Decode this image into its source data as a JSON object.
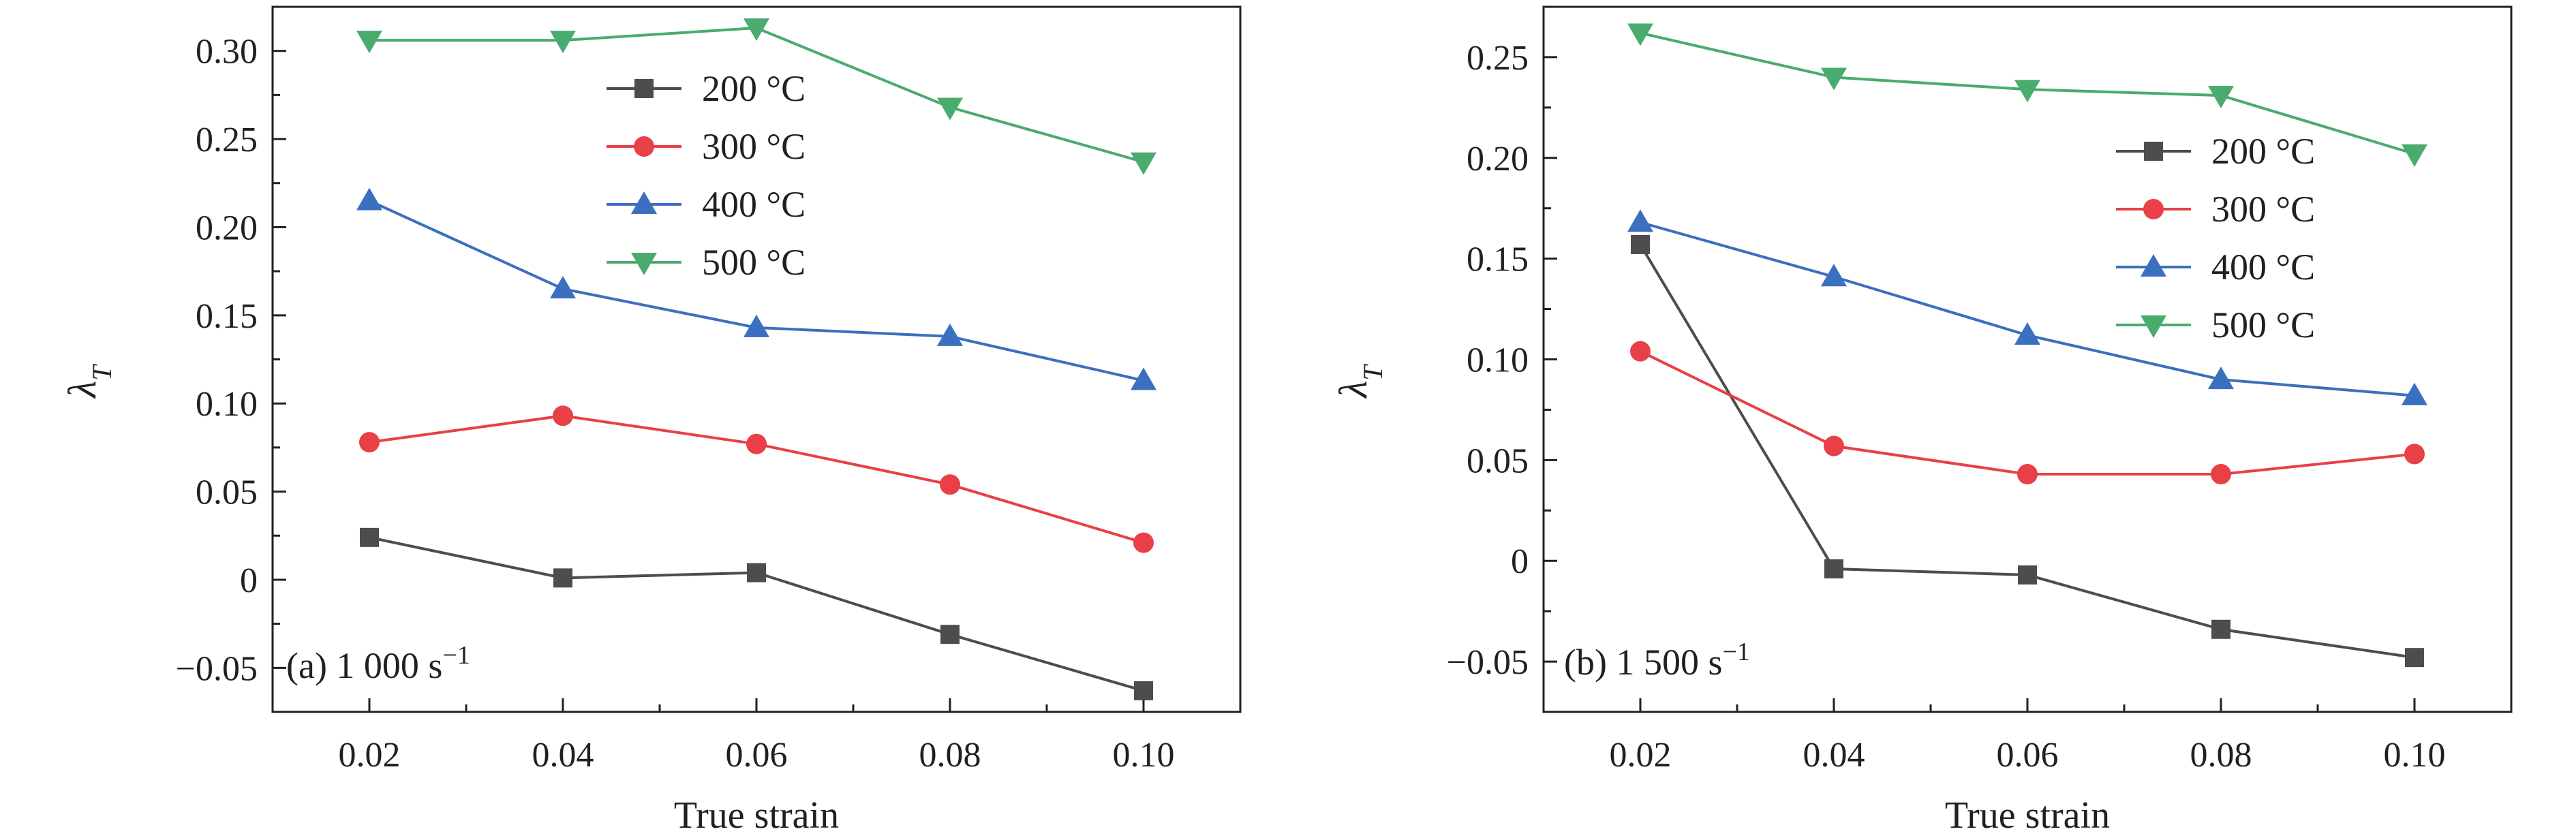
{
  "chart_data": [
    {
      "type": "line",
      "panel_label": "(a) 1 000 s",
      "panel_label_sup": "−1",
      "xlabel": "True strain",
      "ylabel": "λ",
      "ylabel_sub": "T",
      "x": [
        0.02,
        0.04,
        0.06,
        0.08,
        0.1
      ],
      "x_tick_labels": [
        "0.02",
        "0.04",
        "0.06",
        "0.08",
        "0.10"
      ],
      "xlim": [
        0.01,
        0.11
      ],
      "ylim": [
        -0.075,
        0.325
      ],
      "y_ticks": [
        -0.05,
        0,
        0.05,
        0.1,
        0.15,
        0.2,
        0.25,
        0.3
      ],
      "y_tick_labels": [
        "−0.05",
        "0",
        "0.05",
        "0.10",
        "0.15",
        "0.20",
        "0.25",
        "0.30"
      ],
      "legend_position": "top-center",
      "series": [
        {
          "name": "200 °C",
          "color": "#4d4d4d",
          "marker": "square",
          "values": [
            0.024,
            0.001,
            0.004,
            -0.031,
            -0.063
          ]
        },
        {
          "name": "300 °C",
          "color": "#e84046",
          "marker": "circle",
          "values": [
            0.078,
            0.093,
            0.077,
            0.054,
            0.021
          ]
        },
        {
          "name": "400 °C",
          "color": "#3b6fbf",
          "marker": "triangle-up",
          "values": [
            0.215,
            0.165,
            0.143,
            0.138,
            0.113
          ]
        },
        {
          "name": "500 °C",
          "color": "#4aab6f",
          "marker": "triangle-down",
          "values": [
            0.306,
            0.306,
            0.313,
            0.268,
            0.237
          ]
        }
      ]
    },
    {
      "type": "line",
      "panel_label": "(b) 1 500 s",
      "panel_label_sup": "−1",
      "xlabel": "True strain",
      "ylabel": "λ",
      "ylabel_sub": "T",
      "x": [
        0.02,
        0.04,
        0.06,
        0.08,
        0.1
      ],
      "x_tick_labels": [
        "0.02",
        "0.04",
        "0.06",
        "0.08",
        "0.10"
      ],
      "xlim": [
        0.01,
        0.11
      ],
      "ylim": [
        -0.075,
        0.275
      ],
      "y_ticks": [
        -0.05,
        0,
        0.05,
        0.1,
        0.15,
        0.2,
        0.25
      ],
      "y_tick_labels": [
        "−0.05",
        "0",
        "0.05",
        "0.10",
        "0.15",
        "0.20",
        "0.25"
      ],
      "legend_position": "top-right",
      "series": [
        {
          "name": "200 °C",
          "color": "#4d4d4d",
          "marker": "square",
          "values": [
            0.157,
            -0.004,
            -0.007,
            -0.034,
            -0.048
          ]
        },
        {
          "name": "300 °C",
          "color": "#e84046",
          "marker": "circle",
          "values": [
            0.104,
            0.057,
            0.043,
            0.043,
            0.053
          ]
        },
        {
          "name": "400 °C",
          "color": "#3b6fbf",
          "marker": "triangle-up",
          "values": [
            0.168,
            0.141,
            0.112,
            0.09,
            0.082
          ]
        },
        {
          "name": "500 °C",
          "color": "#4aab6f",
          "marker": "triangle-down",
          "values": [
            0.262,
            0.24,
            0.234,
            0.231,
            0.202
          ]
        }
      ]
    }
  ]
}
